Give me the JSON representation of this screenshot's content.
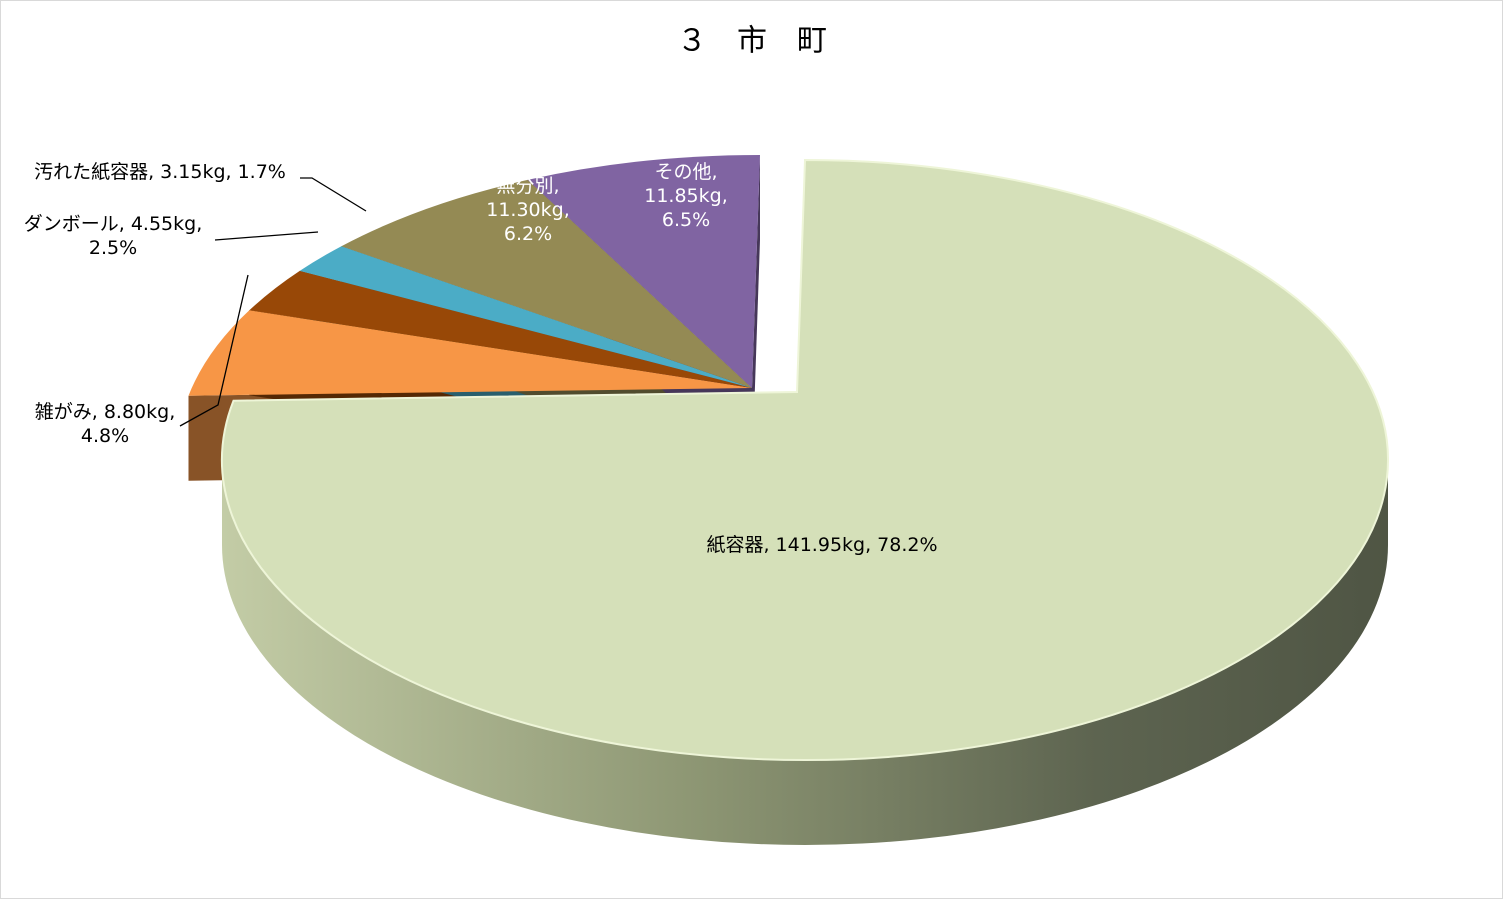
{
  "chart_data": {
    "type": "pie3d",
    "title": "３　市　町",
    "categories": [
      "紙容器",
      "雑がみ",
      "ダンボール",
      "汚れた紙容器",
      "無分別",
      "その他"
    ],
    "values": [
      141.95,
      8.8,
      4.55,
      3.15,
      11.3,
      11.85
    ],
    "value_labels": [
      "141.95kg",
      "8.80kg",
      "4.55kg",
      "3.15kg",
      "11.30kg",
      "11.85kg"
    ],
    "percents": [
      78.2,
      4.8,
      2.5,
      1.7,
      6.2,
      6.5
    ],
    "percent_labels": [
      "78.2%",
      "4.8%",
      "2.5%",
      "1.7%",
      "6.2%",
      "6.5%"
    ],
    "label_separator": ",",
    "colors": [
      "#d5e0b9",
      "#f79646",
      "#984807",
      "#4bacc6",
      "#948a54",
      "#8064a2"
    ]
  }
}
